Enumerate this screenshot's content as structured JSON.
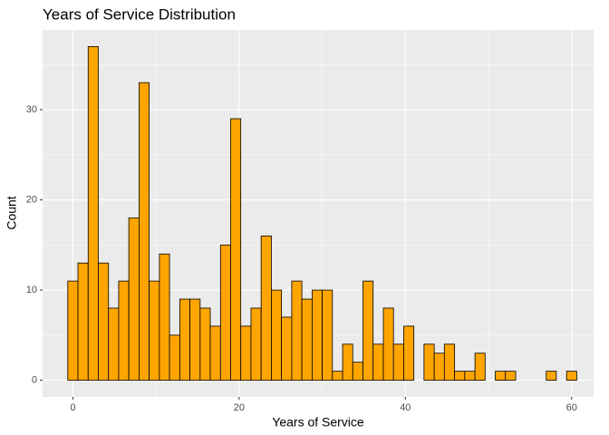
{
  "chart_data": {
    "type": "histogram",
    "title": "Years of Service Distribution",
    "x_label": "Years of Service",
    "y_label": "Count",
    "bins": [
      -0.61,
      0.61,
      1.84,
      3.06,
      4.29,
      5.51,
      6.73,
      7.96,
      9.18,
      10.41,
      11.63,
      12.86,
      14.08,
      15.31,
      16.53,
      17.76,
      18.98,
      20.2,
      21.43,
      22.65,
      23.88,
      25.1,
      26.33,
      27.55,
      28.78,
      30,
      31.22,
      32.45,
      33.67,
      34.9,
      36.12,
      37.35,
      38.57,
      39.8,
      41.02,
      42.24,
      43.47,
      44.69,
      45.92,
      47.14,
      48.37,
      49.59,
      50.82,
      52.04,
      53.27,
      54.49,
      55.71,
      56.94,
      58.16,
      59.39,
      60.61
    ],
    "values": [
      11,
      13,
      37,
      13,
      8,
      11,
      18,
      33,
      11,
      14,
      5,
      9,
      9,
      8,
      6,
      15,
      29,
      6,
      8,
      16,
      10,
      7,
      11,
      9,
      10,
      10,
      1,
      4,
      2,
      11,
      4,
      8,
      4,
      6,
      0,
      4,
      3,
      4,
      1,
      1,
      3,
      0,
      1,
      1,
      0,
      0,
      0,
      1,
      0,
      1
    ],
    "color": "#ffa500",
    "edge_color": "#000000",
    "xlim": [
      -3.64,
      62.64
    ],
    "ylim": [
      -1.85,
      38.85
    ],
    "xticks": [
      0,
      20,
      40,
      60
    ],
    "yticks": [
      0,
      10,
      20,
      30
    ],
    "grid": true
  }
}
